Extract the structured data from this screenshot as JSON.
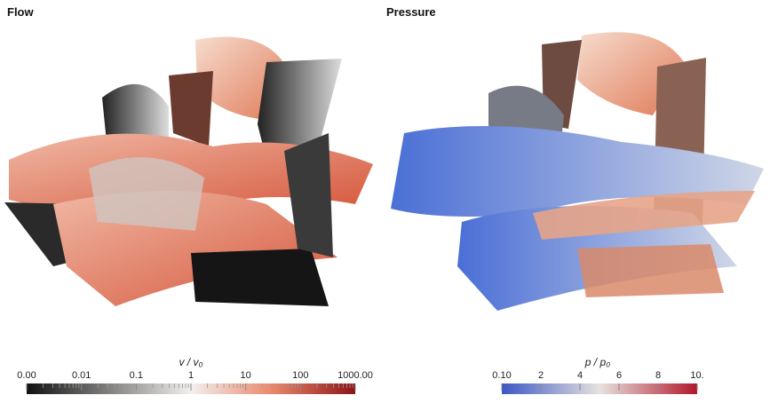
{
  "panels": [
    {
      "title": "Flow",
      "colorbar": {
        "label": "v / v₀",
        "ticks": [
          "0.00",
          "0.01",
          "0.1",
          "1",
          "10",
          "100",
          "1000.00"
        ]
      }
    },
    {
      "title": "Pressure",
      "colorbar": {
        "label": "p / p₀",
        "ticks": [
          "0.10",
          "2",
          "4",
          "6",
          "8",
          "10."
        ]
      }
    }
  ]
}
